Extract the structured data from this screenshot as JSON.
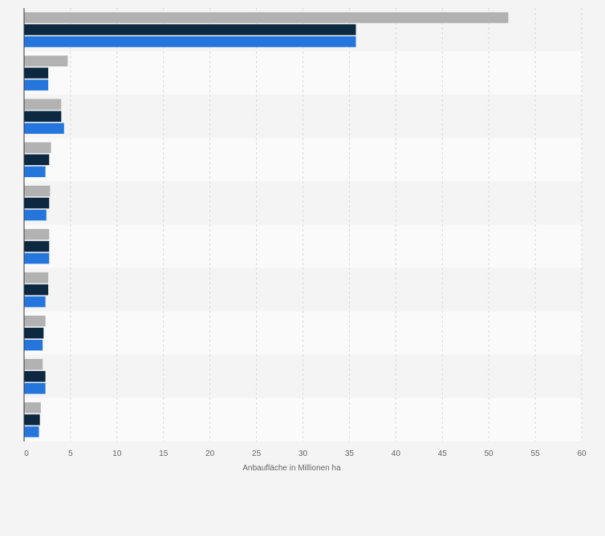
{
  "chart_data": {
    "type": "bar",
    "orientation": "horizontal",
    "xlabel": "Anbaufläche in Millionen ha",
    "xlim": [
      0,
      60
    ],
    "x_ticks": [
      0,
      5,
      10,
      15,
      20,
      25,
      30,
      35,
      40,
      45,
      50,
      55,
      60
    ],
    "grid": true,
    "category_labels_visible": false,
    "series": [
      {
        "color": "#b2b2b2",
        "values": [
          52.1,
          4.7,
          4.0,
          2.9,
          2.8,
          2.7,
          2.6,
          2.3,
          2.0,
          1.8
        ]
      },
      {
        "color": "#0d2841",
        "values": [
          35.7,
          2.6,
          4.0,
          2.7,
          2.7,
          2.7,
          2.6,
          2.1,
          2.3,
          1.7
        ]
      },
      {
        "color": "#2576dc",
        "values": [
          35.7,
          2.6,
          4.3,
          2.3,
          2.4,
          2.7,
          2.3,
          2.0,
          2.3,
          1.6
        ]
      }
    ]
  }
}
